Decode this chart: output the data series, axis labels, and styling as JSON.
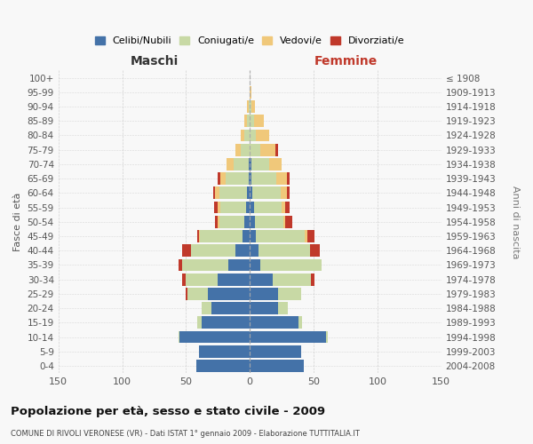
{
  "age_groups": [
    "0-4",
    "5-9",
    "10-14",
    "15-19",
    "20-24",
    "25-29",
    "30-34",
    "35-39",
    "40-44",
    "45-49",
    "50-54",
    "55-59",
    "60-64",
    "65-69",
    "70-74",
    "75-79",
    "80-84",
    "85-89",
    "90-94",
    "95-99",
    "100+"
  ],
  "birth_years": [
    "2004-2008",
    "1999-2003",
    "1994-1998",
    "1989-1993",
    "1984-1988",
    "1979-1983",
    "1974-1978",
    "1969-1973",
    "1964-1968",
    "1959-1963",
    "1954-1958",
    "1949-1953",
    "1944-1948",
    "1939-1943",
    "1934-1938",
    "1929-1933",
    "1924-1928",
    "1919-1923",
    "1914-1918",
    "1909-1913",
    "≤ 1908"
  ],
  "maschi": {
    "celibi": [
      42,
      40,
      55,
      38,
      30,
      33,
      25,
      17,
      11,
      6,
      4,
      3,
      2,
      1,
      1,
      0,
      0,
      0,
      0,
      0,
      0
    ],
    "coniugati": [
      0,
      0,
      1,
      3,
      8,
      16,
      25,
      36,
      35,
      33,
      20,
      20,
      22,
      18,
      12,
      7,
      4,
      2,
      1,
      0,
      0
    ],
    "vedovi": [
      0,
      0,
      0,
      0,
      0,
      0,
      0,
      0,
      0,
      1,
      1,
      2,
      3,
      4,
      5,
      4,
      3,
      2,
      1,
      0,
      0
    ],
    "divorziati": [
      0,
      0,
      0,
      0,
      0,
      1,
      3,
      3,
      7,
      1,
      2,
      3,
      2,
      2,
      0,
      0,
      0,
      0,
      0,
      0,
      0
    ]
  },
  "femmine": {
    "nubili": [
      42,
      40,
      60,
      38,
      22,
      22,
      18,
      8,
      7,
      5,
      4,
      3,
      2,
      1,
      1,
      0,
      0,
      0,
      0,
      0,
      0
    ],
    "coniugate": [
      0,
      0,
      1,
      3,
      8,
      18,
      30,
      48,
      40,
      38,
      22,
      22,
      22,
      20,
      14,
      8,
      5,
      3,
      1,
      0,
      0
    ],
    "vedove": [
      0,
      0,
      0,
      0,
      0,
      0,
      0,
      0,
      0,
      2,
      2,
      3,
      5,
      8,
      10,
      12,
      10,
      8,
      3,
      1,
      0
    ],
    "divorziate": [
      0,
      0,
      0,
      0,
      0,
      0,
      3,
      0,
      8,
      6,
      5,
      3,
      2,
      2,
      0,
      2,
      0,
      0,
      0,
      0,
      0
    ]
  },
  "colors": {
    "celibi": "#4472a8",
    "coniugati": "#c8d9a5",
    "vedovi": "#f0c87a",
    "divorziati": "#c0392b"
  },
  "title": "Popolazione per età, sesso e stato civile - 2009",
  "subtitle": "COMUNE DI RIVOLI VERONESE (VR) - Dati ISTAT 1° gennaio 2009 - Elaborazione TUTTITALIA.IT",
  "xlabel_left": "Maschi",
  "xlabel_right": "Femmine",
  "ylabel_left": "Fasce di età",
  "ylabel_right": "Anni di nascita",
  "legend_labels": [
    "Celibi/Nubili",
    "Coniugati/e",
    "Vedovi/e",
    "Divorziati/e"
  ],
  "xlim": 150,
  "background_color": "#f8f8f8",
  "grid_color": "#cccccc"
}
